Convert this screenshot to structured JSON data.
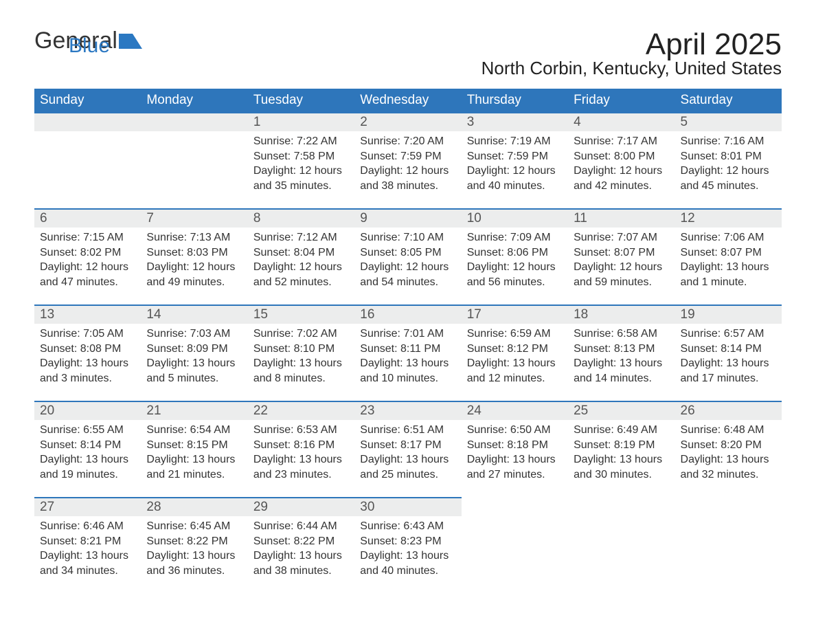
{
  "logo": {
    "general": "General",
    "blue": "Blue"
  },
  "title": "April 2025",
  "subtitle": "North Corbin, Kentucky, United States",
  "colors": {
    "header_bg": "#2e76bb",
    "header_text": "#ffffff",
    "daynum_bg": "#eceded",
    "daynum_text": "#555555",
    "body_text": "#333333",
    "border": "#2e76bb",
    "background": "#ffffff"
  },
  "typography": {
    "title_fontsize": 44,
    "subtitle_fontsize": 26,
    "header_fontsize": 19,
    "daynum_fontsize": 19,
    "body_fontsize": 16,
    "font_family": "Arial"
  },
  "columns": [
    "Sunday",
    "Monday",
    "Tuesday",
    "Wednesday",
    "Thursday",
    "Friday",
    "Saturday"
  ],
  "labels": {
    "sunrise": "Sunrise:",
    "sunset": "Sunset:",
    "daylight": "Daylight:"
  },
  "weeks": [
    [
      {
        "empty": true
      },
      {
        "empty": true
      },
      {
        "day": "1",
        "sunrise": "7:22 AM",
        "sunset": "7:58 PM",
        "daylight": "12 hours and 35 minutes."
      },
      {
        "day": "2",
        "sunrise": "7:20 AM",
        "sunset": "7:59 PM",
        "daylight": "12 hours and 38 minutes."
      },
      {
        "day": "3",
        "sunrise": "7:19 AM",
        "sunset": "7:59 PM",
        "daylight": "12 hours and 40 minutes."
      },
      {
        "day": "4",
        "sunrise": "7:17 AM",
        "sunset": "8:00 PM",
        "daylight": "12 hours and 42 minutes."
      },
      {
        "day": "5",
        "sunrise": "7:16 AM",
        "sunset": "8:01 PM",
        "daylight": "12 hours and 45 minutes."
      }
    ],
    [
      {
        "day": "6",
        "sunrise": "7:15 AM",
        "sunset": "8:02 PM",
        "daylight": "12 hours and 47 minutes."
      },
      {
        "day": "7",
        "sunrise": "7:13 AM",
        "sunset": "8:03 PM",
        "daylight": "12 hours and 49 minutes."
      },
      {
        "day": "8",
        "sunrise": "7:12 AM",
        "sunset": "8:04 PM",
        "daylight": "12 hours and 52 minutes."
      },
      {
        "day": "9",
        "sunrise": "7:10 AM",
        "sunset": "8:05 PM",
        "daylight": "12 hours and 54 minutes."
      },
      {
        "day": "10",
        "sunrise": "7:09 AM",
        "sunset": "8:06 PM",
        "daylight": "12 hours and 56 minutes."
      },
      {
        "day": "11",
        "sunrise": "7:07 AM",
        "sunset": "8:07 PM",
        "daylight": "12 hours and 59 minutes."
      },
      {
        "day": "12",
        "sunrise": "7:06 AM",
        "sunset": "8:07 PM",
        "daylight": "13 hours and 1 minute."
      }
    ],
    [
      {
        "day": "13",
        "sunrise": "7:05 AM",
        "sunset": "8:08 PM",
        "daylight": "13 hours and 3 minutes."
      },
      {
        "day": "14",
        "sunrise": "7:03 AM",
        "sunset": "8:09 PM",
        "daylight": "13 hours and 5 minutes."
      },
      {
        "day": "15",
        "sunrise": "7:02 AM",
        "sunset": "8:10 PM",
        "daylight": "13 hours and 8 minutes."
      },
      {
        "day": "16",
        "sunrise": "7:01 AM",
        "sunset": "8:11 PM",
        "daylight": "13 hours and 10 minutes."
      },
      {
        "day": "17",
        "sunrise": "6:59 AM",
        "sunset": "8:12 PM",
        "daylight": "13 hours and 12 minutes."
      },
      {
        "day": "18",
        "sunrise": "6:58 AM",
        "sunset": "8:13 PM",
        "daylight": "13 hours and 14 minutes."
      },
      {
        "day": "19",
        "sunrise": "6:57 AM",
        "sunset": "8:14 PM",
        "daylight": "13 hours and 17 minutes."
      }
    ],
    [
      {
        "day": "20",
        "sunrise": "6:55 AM",
        "sunset": "8:14 PM",
        "daylight": "13 hours and 19 minutes."
      },
      {
        "day": "21",
        "sunrise": "6:54 AM",
        "sunset": "8:15 PM",
        "daylight": "13 hours and 21 minutes."
      },
      {
        "day": "22",
        "sunrise": "6:53 AM",
        "sunset": "8:16 PM",
        "daylight": "13 hours and 23 minutes."
      },
      {
        "day": "23",
        "sunrise": "6:51 AM",
        "sunset": "8:17 PM",
        "daylight": "13 hours and 25 minutes."
      },
      {
        "day": "24",
        "sunrise": "6:50 AM",
        "sunset": "8:18 PM",
        "daylight": "13 hours and 27 minutes."
      },
      {
        "day": "25",
        "sunrise": "6:49 AM",
        "sunset": "8:19 PM",
        "daylight": "13 hours and 30 minutes."
      },
      {
        "day": "26",
        "sunrise": "6:48 AM",
        "sunset": "8:20 PM",
        "daylight": "13 hours and 32 minutes."
      }
    ],
    [
      {
        "day": "27",
        "sunrise": "6:46 AM",
        "sunset": "8:21 PM",
        "daylight": "13 hours and 34 minutes."
      },
      {
        "day": "28",
        "sunrise": "6:45 AM",
        "sunset": "8:22 PM",
        "daylight": "13 hours and 36 minutes."
      },
      {
        "day": "29",
        "sunrise": "6:44 AM",
        "sunset": "8:22 PM",
        "daylight": "13 hours and 38 minutes."
      },
      {
        "day": "30",
        "sunrise": "6:43 AM",
        "sunset": "8:23 PM",
        "daylight": "13 hours and 40 minutes."
      },
      {
        "empty": true
      },
      {
        "empty": true
      },
      {
        "empty": true
      }
    ]
  ]
}
